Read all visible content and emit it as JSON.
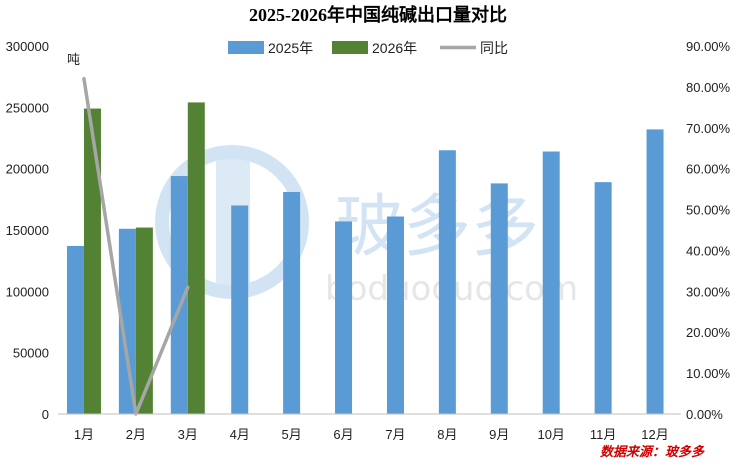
{
  "chart_data": {
    "type": "bar",
    "title": "2025-2026年中国纯碱出口量对比",
    "unit_label": "吨",
    "source": "数据来源：玻多多",
    "watermark": "玻多多",
    "watermark_url": "boduoduo.com",
    "categories": [
      "1月",
      "2月",
      "3月",
      "4月",
      "5月",
      "6月",
      "7月",
      "8月",
      "9月",
      "10月",
      "11月",
      "12月"
    ],
    "ylim": [
      0,
      300000
    ],
    "y_ticks": [
      "0",
      "50000",
      "100000",
      "150000",
      "200000",
      "250000",
      "300000"
    ],
    "y2lim": [
      0,
      0.9
    ],
    "y2_ticks": [
      "0.00%",
      "10.00%",
      "20.00%",
      "30.00%",
      "40.00%",
      "50.00%",
      "60.00%",
      "70.00%",
      "80.00%",
      "90.00%"
    ],
    "legend_position": "top",
    "series": [
      {
        "name": "2025年",
        "kind": "bar",
        "color": "#5b9bd5",
        "values": [
          137000,
          151000,
          194000,
          170000,
          181000,
          157000,
          161000,
          215000,
          188000,
          214000,
          189000,
          232000
        ]
      },
      {
        "name": "2026年",
        "kind": "bar",
        "color": "#548235",
        "values": [
          249000,
          152000,
          254000,
          null,
          null,
          null,
          null,
          null,
          null,
          null,
          null,
          null
        ]
      },
      {
        "name": "同比",
        "kind": "line",
        "axis": "right",
        "color": "#a6a6a6",
        "values": [
          0.82,
          0.0,
          0.31,
          null,
          null,
          null,
          null,
          null,
          null,
          null,
          null,
          null
        ]
      }
    ]
  }
}
